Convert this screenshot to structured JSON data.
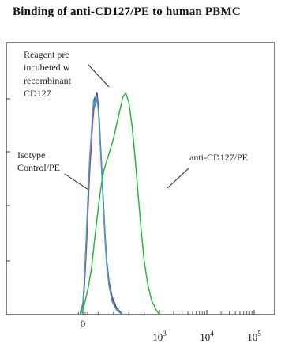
{
  "chart_data": {
    "type": "line",
    "title": "Binding of anti-CD127/PE to human PBMC",
    "xlabel": "",
    "ylabel": "",
    "x_scale": "log",
    "x_ticks": [
      {
        "value": 0,
        "base": "0",
        "exp": ""
      },
      {
        "value": 1000,
        "base": "10",
        "exp": "3"
      },
      {
        "value": 10000,
        "base": "10",
        "exp": "4"
      },
      {
        "value": 100000,
        "base": "10",
        "exp": "5"
      }
    ],
    "annotations": {
      "reagent": [
        "Reagent pre",
        "incubeted w",
        "recombinant",
        "CD127"
      ],
      "isotype": [
        "Isotype",
        "Control/PE"
      ],
      "anti": [
        "anti-CD127/PE"
      ]
    },
    "series": [
      {
        "color": "#2a4fa8",
        "points": [
          [
            -40,
            0
          ],
          [
            0,
            5
          ],
          [
            15,
            12
          ],
          [
            30,
            22
          ],
          [
            45,
            33
          ],
          [
            60,
            45
          ],
          [
            75,
            57
          ],
          [
            90,
            68
          ],
          [
            110,
            78
          ],
          [
            125,
            86
          ],
          [
            140,
            92
          ],
          [
            155,
            96
          ],
          [
            170,
            94
          ],
          [
            185,
            98
          ],
          [
            200,
            93
          ],
          [
            215,
            85
          ],
          [
            230,
            75
          ],
          [
            250,
            62
          ],
          [
            270,
            48
          ],
          [
            290,
            35
          ],
          [
            310,
            24
          ],
          [
            340,
            15
          ],
          [
            380,
            8
          ],
          [
            440,
            3
          ],
          [
            520,
            0
          ]
        ]
      },
      {
        "color": "#d03030",
        "points": [
          [
            -40,
            0
          ],
          [
            0,
            4
          ],
          [
            15,
            10
          ],
          [
            30,
            19
          ],
          [
            45,
            29
          ],
          [
            60,
            41
          ],
          [
            75,
            53
          ],
          [
            90,
            64
          ],
          [
            110,
            75
          ],
          [
            125,
            84
          ],
          [
            140,
            90
          ],
          [
            155,
            94
          ],
          [
            170,
            95
          ],
          [
            185,
            97
          ],
          [
            200,
            92
          ],
          [
            215,
            84
          ],
          [
            230,
            74
          ],
          [
            250,
            61
          ],
          [
            270,
            47
          ],
          [
            290,
            34
          ],
          [
            310,
            23
          ],
          [
            340,
            14
          ],
          [
            380,
            7
          ],
          [
            440,
            2
          ],
          [
            520,
            0
          ]
        ]
      },
      {
        "color": "#3aa0d8",
        "points": [
          [
            -40,
            0
          ],
          [
            0,
            5
          ],
          [
            15,
            13
          ],
          [
            30,
            23
          ],
          [
            45,
            35
          ],
          [
            60,
            47
          ],
          [
            75,
            59
          ],
          [
            90,
            70
          ],
          [
            110,
            80
          ],
          [
            125,
            88
          ],
          [
            140,
            95
          ],
          [
            155,
            92
          ],
          [
            170,
            97
          ],
          [
            185,
            95
          ],
          [
            200,
            91
          ],
          [
            215,
            83
          ],
          [
            230,
            73
          ],
          [
            250,
            60
          ],
          [
            270,
            46
          ],
          [
            290,
            33
          ],
          [
            310,
            22
          ],
          [
            340,
            13
          ],
          [
            380,
            6
          ],
          [
            440,
            2
          ],
          [
            520,
            0
          ]
        ]
      },
      {
        "color": "#28b83c",
        "points": [
          [
            -40,
            0
          ],
          [
            0,
            2
          ],
          [
            30,
            6
          ],
          [
            70,
            12
          ],
          [
            110,
            20
          ],
          [
            150,
            32
          ],
          [
            190,
            44
          ],
          [
            230,
            55
          ],
          [
            270,
            63
          ],
          [
            310,
            68
          ],
          [
            350,
            72
          ],
          [
            400,
            78
          ],
          [
            440,
            84
          ],
          [
            480,
            90
          ],
          [
            520,
            96
          ],
          [
            560,
            98
          ],
          [
            600,
            94
          ],
          [
            640,
            84
          ],
          [
            680,
            70
          ],
          [
            720,
            54
          ],
          [
            760,
            38
          ],
          [
            800,
            24
          ],
          [
            850,
            13
          ],
          [
            900,
            6
          ],
          [
            960,
            2
          ],
          [
            1000,
            0
          ]
        ]
      }
    ]
  }
}
